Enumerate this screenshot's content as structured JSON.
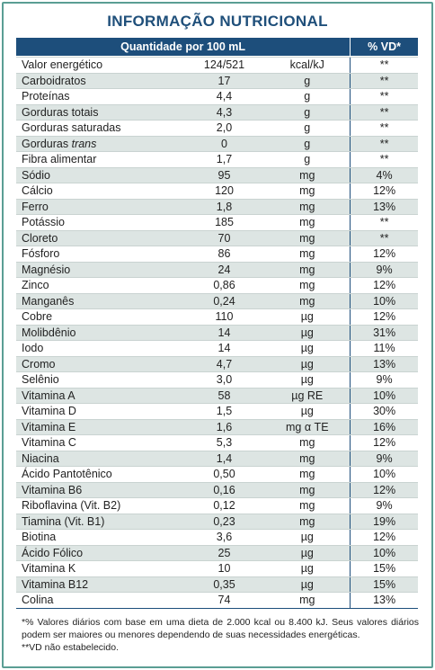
{
  "title": "INFORMAÇÃO NUTRICIONAL",
  "header": {
    "quantity": "Quantidade por 100 mL",
    "vd": "% VD*"
  },
  "rows": [
    {
      "name": "Valor energético",
      "value": "124/521",
      "unit": "kcal/kJ",
      "vd": "**"
    },
    {
      "name": "Carboidratos",
      "value": "17",
      "unit": "g",
      "vd": "**"
    },
    {
      "name": "Proteínas",
      "value": "4,4",
      "unit": "g",
      "vd": "**"
    },
    {
      "name": "Gorduras totais",
      "value": "4,3",
      "unit": "g",
      "vd": "**"
    },
    {
      "name": "Gorduras saturadas",
      "value": "2,0",
      "unit": "g",
      "vd": "**"
    },
    {
      "name": "Gorduras",
      "name_italic": "trans",
      "value": "0",
      "unit": "g",
      "vd": "**"
    },
    {
      "name": "Fibra alimentar",
      "value": "1,7",
      "unit": "g",
      "vd": "**"
    },
    {
      "name": "Sódio",
      "value": "95",
      "unit": "mg",
      "vd": "4%"
    },
    {
      "name": "Cálcio",
      "value": "120",
      "unit": "mg",
      "vd": "12%"
    },
    {
      "name": "Ferro",
      "value": "1,8",
      "unit": "mg",
      "vd": "13%"
    },
    {
      "name": "Potássio",
      "value": "185",
      "unit": "mg",
      "vd": "**"
    },
    {
      "name": "Cloreto",
      "value": "70",
      "unit": "mg",
      "vd": "**"
    },
    {
      "name": "Fósforo",
      "value": "86",
      "unit": "mg",
      "vd": "12%"
    },
    {
      "name": "Magnésio",
      "value": "24",
      "unit": "mg",
      "vd": "9%"
    },
    {
      "name": "Zinco",
      "value": "0,86",
      "unit": "mg",
      "vd": "12%"
    },
    {
      "name": "Manganês",
      "value": "0,24",
      "unit": "mg",
      "vd": "10%"
    },
    {
      "name": "Cobre",
      "value": "110",
      "unit": "µg",
      "vd": "12%"
    },
    {
      "name": "Molibdênio",
      "value": "14",
      "unit": "µg",
      "vd": "31%"
    },
    {
      "name": "Iodo",
      "value": "14",
      "unit": "µg",
      "vd": "11%"
    },
    {
      "name": "Cromo",
      "value": "4,7",
      "unit": "µg",
      "vd": "13%"
    },
    {
      "name": "Selênio",
      "value": "3,0",
      "unit": "µg",
      "vd": "9%"
    },
    {
      "name": "Vitamina A",
      "value": "58",
      "unit": "µg RE",
      "vd": "10%"
    },
    {
      "name": "Vitamina D",
      "value": "1,5",
      "unit": "µg",
      "vd": "30%"
    },
    {
      "name": "Vitamina E",
      "value": "1,6",
      "unit": "mg α TE",
      "vd": "16%"
    },
    {
      "name": "Vitamina C",
      "value": "5,3",
      "unit": "mg",
      "vd": "12%"
    },
    {
      "name": "Niacina",
      "value": "1,4",
      "unit": "mg",
      "vd": "9%"
    },
    {
      "name": "Ácido Pantotênico",
      "value": "0,50",
      "unit": "mg",
      "vd": "10%"
    },
    {
      "name": "Vitamina B6",
      "value": "0,16",
      "unit": "mg",
      "vd": "12%"
    },
    {
      "name": "Riboflavina (Vit. B2)",
      "value": "0,12",
      "unit": "mg",
      "vd": "9%"
    },
    {
      "name": "Tiamina (Vit. B1)",
      "value": "0,23",
      "unit": "mg",
      "vd": "19%"
    },
    {
      "name": "Biotina",
      "value": "3,6",
      "unit": "µg",
      "vd": "12%"
    },
    {
      "name": "Ácido Fólico",
      "value": "25",
      "unit": "µg",
      "vd": "10%"
    },
    {
      "name": "Vitamina K",
      "value": "10",
      "unit": "µg",
      "vd": "15%"
    },
    {
      "name": "Vitamina B12",
      "value": "0,35",
      "unit": "µg",
      "vd": "15%"
    },
    {
      "name": "Colina",
      "value": "74",
      "unit": "mg",
      "vd": "13%"
    }
  ],
  "footnotes": [
    "*% Valores diários com base em uma dieta de 2.000 kcal ou 8.400 kJ. Seus valores diários podem ser maiores ou menores dependendo de suas necessidades energéticas.",
    "**VD não estabelecido."
  ]
}
